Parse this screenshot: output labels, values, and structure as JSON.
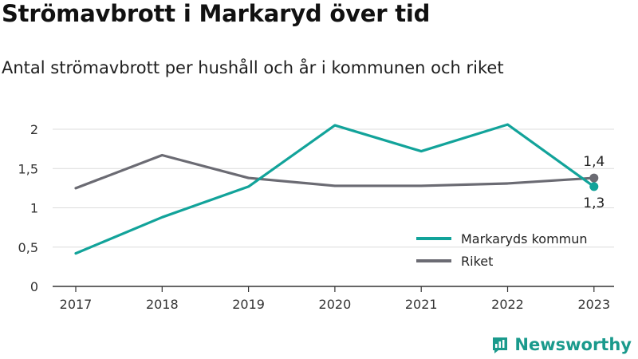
{
  "title": "Strömavbrott i Markaryd över tid",
  "subtitle": "Antal strömavbrott per hushåll och år i kommunen och riket",
  "brand": {
    "name": "Newsworthy",
    "icon": "newsworthy-logo-icon"
  },
  "colors": {
    "kommun": "#12a39a",
    "riket": "#6b6b73",
    "grid": "#dcdcdc",
    "axis": "#333333"
  },
  "chart_data": {
    "type": "line",
    "x": [
      "2017",
      "2018",
      "2019",
      "2020",
      "2021",
      "2022",
      "2023"
    ],
    "y_ticks": [
      "0",
      "0,5",
      "1",
      "1,5",
      "2"
    ],
    "ylim": [
      0,
      2.05
    ],
    "grid": true,
    "legend_position": "bottom-right",
    "series": [
      {
        "name": "Markaryds kommun",
        "values": [
          0.42,
          0.88,
          1.27,
          2.05,
          1.72,
          2.06,
          1.27
        ],
        "end_label": "1,3"
      },
      {
        "name": "Riket",
        "values": [
          1.25,
          1.67,
          1.38,
          1.28,
          1.28,
          1.31,
          1.38
        ],
        "end_label": "1,4"
      }
    ]
  }
}
